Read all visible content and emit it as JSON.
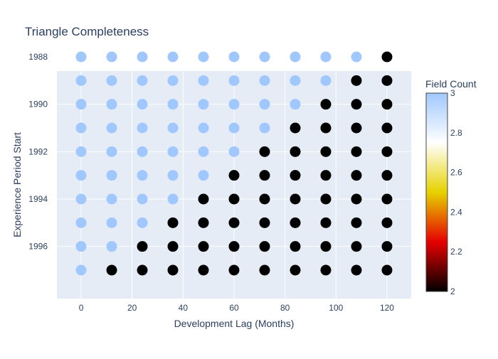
{
  "chart_data": {
    "type": "scatter",
    "title": "Triangle Completeness",
    "xlabel": "Development Lag (Months)",
    "ylabel": "Experience Period Start",
    "xlim": [
      -9.5,
      129.5
    ],
    "ylim_years": [
      1988.6,
      1998.2
    ],
    "x_ticks": [
      0,
      20,
      40,
      60,
      80,
      100,
      120
    ],
    "y_ticks": [
      1988,
      1990,
      1992,
      1994,
      1996
    ],
    "grid": true,
    "colorbar": {
      "title": "Field Count",
      "min": 2,
      "max": 3,
      "ticks": [
        2,
        2.2,
        2.4,
        2.6,
        2.8,
        3
      ],
      "tick_labels": [
        "2",
        "2.2",
        "2.4",
        "2.6",
        "2.8",
        "3"
      ],
      "colorscale": [
        "#000000",
        "#e60000",
        "#e6d200",
        "#ffffff",
        "#a0c8ff"
      ]
    },
    "x": [
      0,
      12,
      24,
      36,
      48,
      60,
      72,
      84,
      96,
      108,
      120
    ],
    "years": [
      1988,
      1989,
      1990,
      1991,
      1992,
      1993,
      1994,
      1995,
      1996,
      1997
    ],
    "complete_lags_per_year": [
      10,
      9,
      8,
      7,
      6,
      5,
      4,
      3,
      2,
      1
    ],
    "values_rule": "3 when lag index < complete_lags_per_year, else 2"
  }
}
